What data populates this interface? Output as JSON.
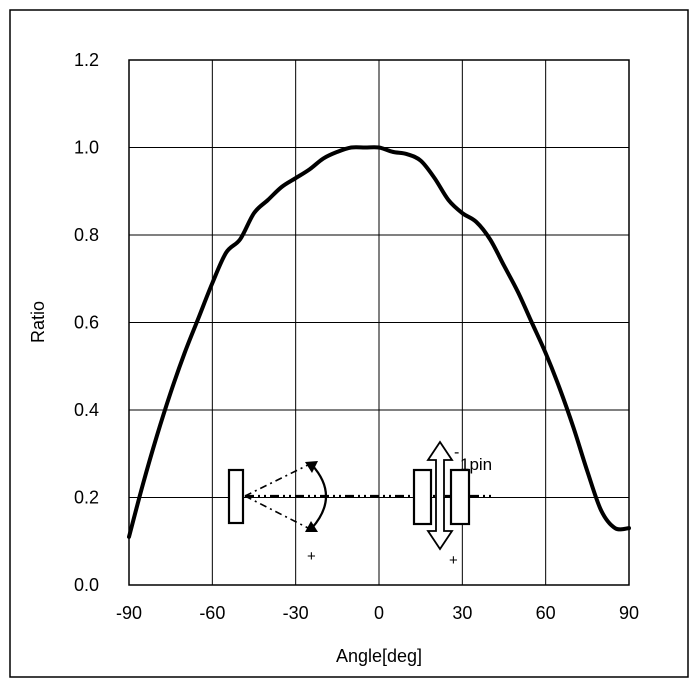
{
  "chart_data": {
    "type": "line",
    "title": "",
    "xlabel": "Angle[deg]",
    "ylabel": "Ratio",
    "xlim": [
      -90,
      90
    ],
    "ylim": [
      0.0,
      1.2
    ],
    "x_ticks": [
      -90,
      -60,
      -30,
      0,
      30,
      60,
      90
    ],
    "x_tick_labels": [
      "-90",
      "-60",
      "-30",
      "0",
      "30",
      "60",
      "90"
    ],
    "y_ticks": [
      0.0,
      0.2,
      0.4,
      0.6,
      0.8,
      1.0,
      1.2
    ],
    "y_tick_labels": [
      "0.0",
      "0.2",
      "0.4",
      "0.6",
      "0.8",
      "1.0",
      "1.2"
    ],
    "grid": true,
    "series": [
      {
        "x": [
          -90,
          -85,
          -80,
          -75,
          -70,
          -65,
          -60,
          -55,
          -50,
          -45,
          -40,
          -35,
          -30,
          -25,
          -20,
          -15,
          -10,
          -5,
          0,
          5,
          10,
          15,
          20,
          25,
          30,
          35,
          40,
          45,
          50,
          55,
          60,
          65,
          70,
          75,
          80,
          85,
          90
        ],
        "y": [
          0.11,
          0.23,
          0.34,
          0.44,
          0.53,
          0.61,
          0.69,
          0.76,
          0.79,
          0.85,
          0.88,
          0.91,
          0.93,
          0.95,
          0.975,
          0.99,
          1.0,
          1.0,
          1.0,
          0.99,
          0.985,
          0.97,
          0.93,
          0.88,
          0.85,
          0.83,
          0.79,
          0.73,
          0.67,
          0.6,
          0.53,
          0.45,
          0.36,
          0.26,
          0.17,
          0.13,
          0.13
        ],
        "color": "#000000"
      }
    ],
    "annotations": {
      "pin_label": "1pin",
      "minus_sign": "-",
      "plus_sign_rotation": "+",
      "plus_sign_pin": "+"
    }
  }
}
